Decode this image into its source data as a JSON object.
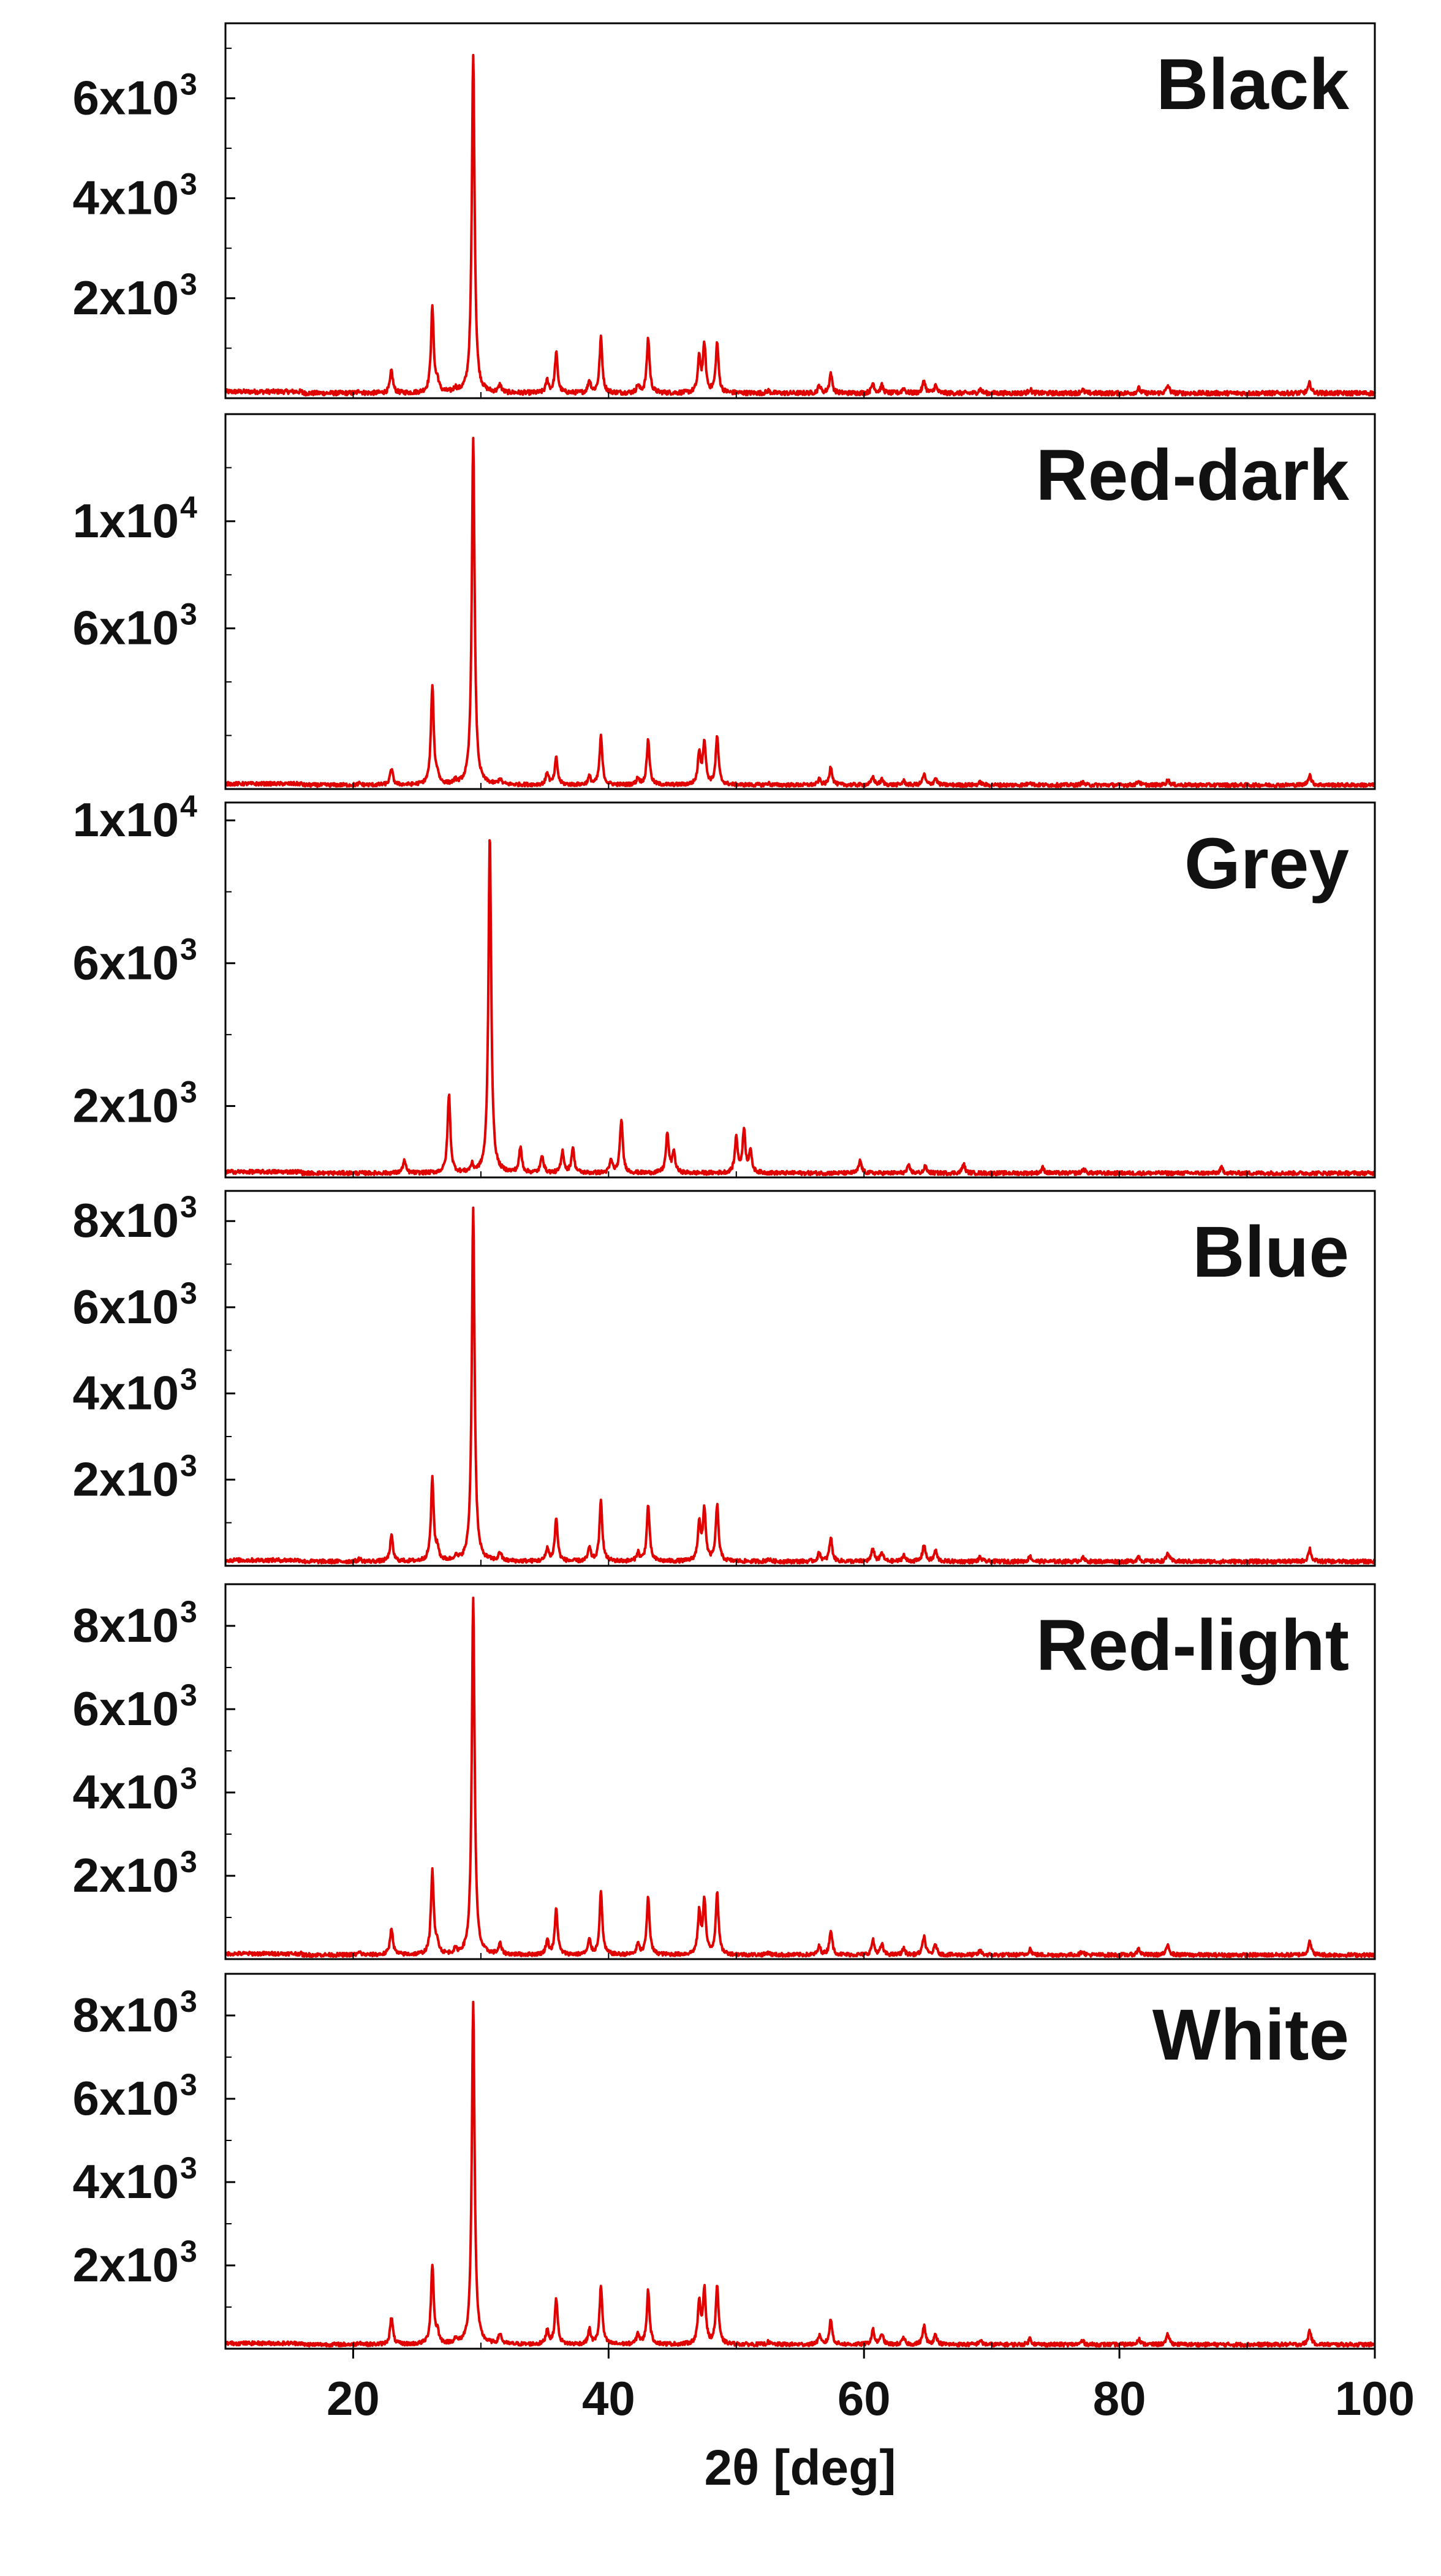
{
  "chart_data": {
    "type": "line",
    "title": "",
    "xlabel": "2θ [deg]",
    "xlim": [
      10,
      100
    ],
    "xticks": [
      20,
      40,
      60,
      80,
      100
    ],
    "grid": false,
    "legend": "none",
    "line_color": "#e00000",
    "panels": [
      {
        "name": "Black",
        "ylim": [
          0,
          7500
        ],
        "yticks": [
          {
            "value": 2000,
            "mantissa": "2x10",
            "exp": "3"
          },
          {
            "value": 4000,
            "mantissa": "4x10",
            "exp": "3"
          },
          {
            "value": 6000,
            "mantissa": "6x10",
            "exp": "3"
          }
        ],
        "baseline": 100,
        "peaks": [
          [
            20.5,
            50
          ],
          [
            23.0,
            450
          ],
          [
            26.2,
            1700
          ],
          [
            26.6,
            200
          ],
          [
            28.0,
            80
          ],
          [
            29.4,
            6800
          ],
          [
            31.5,
            150
          ],
          [
            35.2,
            250
          ],
          [
            35.9,
            800
          ],
          [
            38.5,
            250
          ],
          [
            39.4,
            1100
          ],
          [
            42.3,
            150
          ],
          [
            43.1,
            1100
          ],
          [
            47.1,
            700
          ],
          [
            47.5,
            950
          ],
          [
            48.5,
            1000
          ],
          [
            52.5,
            50
          ],
          [
            56.5,
            150
          ],
          [
            57.4,
            400
          ],
          [
            60.7,
            200
          ],
          [
            61.4,
            150
          ],
          [
            63.1,
            100
          ],
          [
            64.7,
            250
          ],
          [
            65.6,
            150
          ],
          [
            69.1,
            80
          ],
          [
            73.0,
            80
          ],
          [
            77.1,
            70
          ],
          [
            81.5,
            100
          ],
          [
            83.8,
            150
          ],
          [
            94.9,
            200
          ]
        ]
      },
      {
        "name": "Red-dark",
        "ylim": [
          0,
          14000
        ],
        "yticks": [
          {
            "value": 6000,
            "mantissa": "6x10",
            "exp": "3"
          },
          {
            "value": 10000,
            "mantissa": "1x10",
            "exp": "4"
          }
        ],
        "baseline": 150,
        "peaks": [
          [
            20.5,
            60
          ],
          [
            23.0,
            600
          ],
          [
            26.2,
            3700
          ],
          [
            26.6,
            300
          ],
          [
            28.0,
            120
          ],
          [
            29.4,
            13000
          ],
          [
            31.5,
            200
          ],
          [
            35.2,
            450
          ],
          [
            35.9,
            1000
          ],
          [
            38.5,
            300
          ],
          [
            39.4,
            1800
          ],
          [
            42.3,
            250
          ],
          [
            43.1,
            1700
          ],
          [
            47.1,
            1200
          ],
          [
            47.5,
            1600
          ],
          [
            48.5,
            1800
          ],
          [
            52.5,
            60
          ],
          [
            56.5,
            200
          ],
          [
            57.4,
            700
          ],
          [
            60.7,
            300
          ],
          [
            61.4,
            200
          ],
          [
            63.1,
            150
          ],
          [
            64.7,
            400
          ],
          [
            65.6,
            250
          ],
          [
            69.1,
            100
          ],
          [
            73.0,
            120
          ],
          [
            77.1,
            100
          ],
          [
            81.5,
            150
          ],
          [
            83.8,
            200
          ],
          [
            94.9,
            400
          ]
        ]
      },
      {
        "name": "Grey",
        "ylim": [
          0,
          10500
        ],
        "yticks": [
          {
            "value": 2000,
            "mantissa": "2x10",
            "exp": "3"
          },
          {
            "value": 6000,
            "mantissa": "6x10",
            "exp": "3"
          },
          {
            "value": 10000,
            "mantissa": "1x10",
            "exp": "4"
          }
        ],
        "baseline": 120,
        "peaks": [
          [
            24.0,
            350
          ],
          [
            27.5,
            2200
          ],
          [
            29.3,
            200
          ],
          [
            30.7,
            9500
          ],
          [
            33.1,
            700
          ],
          [
            34.8,
            500
          ],
          [
            36.4,
            600
          ],
          [
            37.2,
            700
          ],
          [
            40.2,
            350
          ],
          [
            41.0,
            1500
          ],
          [
            44.6,
            1100
          ],
          [
            45.1,
            600
          ],
          [
            50.0,
            1000
          ],
          [
            50.6,
            1200
          ],
          [
            51.1,
            600
          ],
          [
            59.7,
            350
          ],
          [
            63.5,
            200
          ],
          [
            64.8,
            180
          ],
          [
            67.8,
            250
          ],
          [
            74.0,
            150
          ],
          [
            77.2,
            120
          ],
          [
            88.0,
            150
          ]
        ]
      },
      {
        "name": "Blue",
        "ylim": [
          0,
          8700
        ],
        "yticks": [
          {
            "value": 2000,
            "mantissa": "2x10",
            "exp": "3"
          },
          {
            "value": 4000,
            "mantissa": "4x10",
            "exp": "3"
          },
          {
            "value": 6000,
            "mantissa": "6x10",
            "exp": "3"
          },
          {
            "value": 8000,
            "mantissa": "8x10",
            "exp": "3"
          }
        ],
        "baseline": 100,
        "peaks": [
          [
            20.5,
            60
          ],
          [
            23.0,
            600
          ],
          [
            26.2,
            1900
          ],
          [
            26.6,
            250
          ],
          [
            28.0,
            100
          ],
          [
            29.4,
            8200
          ],
          [
            31.5,
            200
          ],
          [
            35.2,
            300
          ],
          [
            35.9,
            1000
          ],
          [
            38.5,
            300
          ],
          [
            39.4,
            1400
          ],
          [
            42.3,
            200
          ],
          [
            43.1,
            1300
          ],
          [
            47.1,
            900
          ],
          [
            47.5,
            1200
          ],
          [
            48.5,
            1300
          ],
          [
            52.5,
            60
          ],
          [
            56.5,
            200
          ],
          [
            57.4,
            550
          ],
          [
            60.7,
            300
          ],
          [
            61.4,
            200
          ],
          [
            63.1,
            150
          ],
          [
            64.7,
            400
          ],
          [
            65.6,
            250
          ],
          [
            69.1,
            100
          ],
          [
            73.0,
            120
          ],
          [
            77.1,
            100
          ],
          [
            81.5,
            120
          ],
          [
            83.8,
            200
          ],
          [
            94.9,
            300
          ]
        ]
      },
      {
        "name": "Red-light",
        "ylim": [
          0,
          9000
        ],
        "yticks": [
          {
            "value": 2000,
            "mantissa": "2x10",
            "exp": "3"
          },
          {
            "value": 4000,
            "mantissa": "4x10",
            "exp": "3"
          },
          {
            "value": 6000,
            "mantissa": "6x10",
            "exp": "3"
          },
          {
            "value": 8000,
            "mantissa": "8x10",
            "exp": "3"
          }
        ],
        "baseline": 100,
        "peaks": [
          [
            20.5,
            60
          ],
          [
            23.0,
            650
          ],
          [
            26.2,
            2000
          ],
          [
            26.6,
            250
          ],
          [
            28.0,
            100
          ],
          [
            29.4,
            8600
          ],
          [
            31.5,
            250
          ],
          [
            35.2,
            350
          ],
          [
            35.9,
            1100
          ],
          [
            38.5,
            350
          ],
          [
            39.4,
            1500
          ],
          [
            42.3,
            250
          ],
          [
            43.1,
            1400
          ],
          [
            47.1,
            1000
          ],
          [
            47.5,
            1300
          ],
          [
            48.5,
            1500
          ],
          [
            52.5,
            60
          ],
          [
            56.5,
            200
          ],
          [
            57.4,
            600
          ],
          [
            60.7,
            350
          ],
          [
            61.4,
            250
          ],
          [
            63.1,
            150
          ],
          [
            64.7,
            450
          ],
          [
            65.6,
            250
          ],
          [
            69.1,
            100
          ],
          [
            73.0,
            150
          ],
          [
            77.1,
            100
          ],
          [
            81.5,
            150
          ],
          [
            83.8,
            250
          ],
          [
            94.9,
            350
          ]
        ]
      },
      {
        "name": "White",
        "ylim": [
          0,
          9000
        ],
        "yticks": [
          {
            "value": 2000,
            "mantissa": "2x10",
            "exp": "3"
          },
          {
            "value": 4000,
            "mantissa": "4x10",
            "exp": "3"
          },
          {
            "value": 6000,
            "mantissa": "6x10",
            "exp": "3"
          },
          {
            "value": 8000,
            "mantissa": "8x10",
            "exp": "3"
          }
        ],
        "baseline": 100,
        "peaks": [
          [
            20.5,
            60
          ],
          [
            23.0,
            650
          ],
          [
            26.2,
            1900
          ],
          [
            26.6,
            250
          ],
          [
            28.0,
            100
          ],
          [
            29.4,
            8200
          ],
          [
            31.5,
            250
          ],
          [
            35.2,
            350
          ],
          [
            35.9,
            1100
          ],
          [
            38.5,
            350
          ],
          [
            39.4,
            1400
          ],
          [
            42.3,
            250
          ],
          [
            43.1,
            1300
          ],
          [
            47.1,
            1000
          ],
          [
            47.5,
            1300
          ],
          [
            48.5,
            1400
          ],
          [
            52.5,
            60
          ],
          [
            56.5,
            200
          ],
          [
            57.4,
            600
          ],
          [
            60.7,
            350
          ],
          [
            61.4,
            250
          ],
          [
            63.1,
            150
          ],
          [
            64.7,
            450
          ],
          [
            65.6,
            250
          ],
          [
            69.1,
            100
          ],
          [
            73.0,
            150
          ],
          [
            77.1,
            100
          ],
          [
            81.5,
            150
          ],
          [
            83.8,
            250
          ],
          [
            94.9,
            350
          ]
        ]
      }
    ]
  }
}
